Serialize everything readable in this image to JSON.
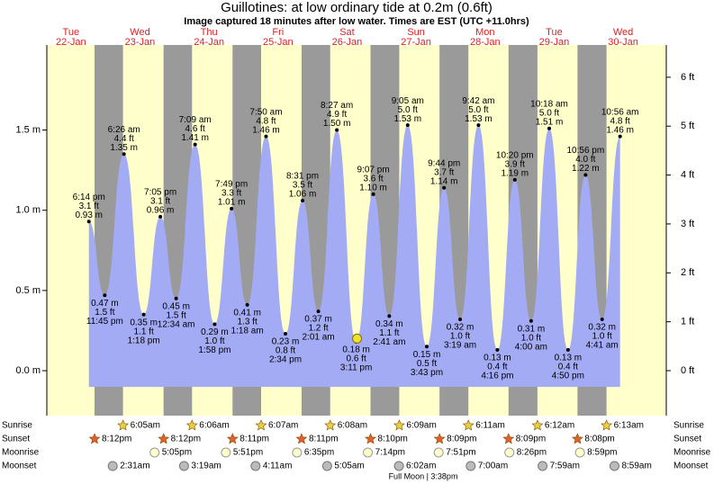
{
  "chart_data": {
    "type": "area",
    "title": "Guillotines: at low  ordinary tide at 0.2m (0.6ft)",
    "subtitle": "Image captured 18 minutes after low water. Times are EST (UTC +11.0hrs)",
    "days": [
      {
        "dow": "Tue",
        "date": "22-Jan"
      },
      {
        "dow": "Wed",
        "date": "23-Jan"
      },
      {
        "dow": "Thu",
        "date": "24-Jan"
      },
      {
        "dow": "Fri",
        "date": "25-Jan"
      },
      {
        "dow": "Sat",
        "date": "26-Jan"
      },
      {
        "dow": "Sun",
        "date": "27-Jan"
      },
      {
        "dow": "Mon",
        "date": "28-Jan"
      },
      {
        "dow": "Tue",
        "date": "29-Jan"
      },
      {
        "dow": "Wed",
        "date": "30-Jan"
      }
    ],
    "x": [
      18.23,
      23.75,
      30.43,
      37.3,
      43.08,
      48.57,
      55.15,
      61.97,
      67.82,
      73.3,
      79.83,
      86.57,
      92.52,
      98.02,
      104.45,
      111.18,
      117.12,
      122.68,
      129.08,
      135.72,
      141.73,
      147.32,
      153.7,
      160.27,
      166.33,
      172.0,
      178.3,
      184.83,
      190.93,
      196.68,
      202.93
    ],
    "values": [
      0.93,
      0.47,
      1.35,
      0.35,
      0.96,
      0.45,
      1.41,
      0.29,
      1.01,
      0.41,
      1.46,
      0.23,
      1.06,
      0.37,
      1.5,
      0.18,
      1.1,
      0.34,
      1.53,
      0.15,
      1.14,
      0.32,
      1.53,
      0.13,
      1.19,
      0.31,
      1.51,
      0.13,
      1.22,
      0.32,
      1.46
    ],
    "value_labels": [
      "0.93 m",
      "0.47 m",
      "1.35 m",
      "0.35 m",
      "0.96 m",
      "0.45 m",
      "1.41 m",
      "0.29 m",
      "1.01 m",
      "0.41 m",
      "1.46 m",
      "0.23 m",
      "1.06 m",
      "0.37 m",
      "1.50 m",
      "0.18 m",
      "1.10 m",
      "0.34 m",
      "1.53 m",
      "0.15 m",
      "1.14 m",
      "0.32 m",
      "1.53 m",
      "0.13 m",
      "1.19 m",
      "0.31 m",
      "1.51 m",
      "0.13 m",
      "1.22 m",
      "0.32 m",
      "1.46 m"
    ],
    "ft_labels": [
      "3.1 ft",
      "1.5 ft",
      "4.4 ft",
      "1.1 ft",
      "3.1 ft",
      "1.5 ft",
      "4.6 ft",
      "1.0 ft",
      "3.3 ft",
      "1.3 ft",
      "4.8 ft",
      "0.8 ft",
      "3.5 ft",
      "1.2 ft",
      "4.9 ft",
      "0.6 ft",
      "3.6 ft",
      "1.1 ft",
      "5.0 ft",
      "0.5 ft",
      "3.7 ft",
      "1.0 ft",
      "5.0 ft",
      "0.4 ft",
      "3.9 ft",
      "1.0 ft",
      "5.0 ft",
      "0.4 ft",
      "4.0 ft",
      "1.0 ft",
      "4.8 ft"
    ],
    "time_labels": [
      "6:14 pm",
      "11:45 pm",
      "6:26 am",
      "1:18 pm",
      "7:05 pm",
      "12:34 am",
      "7:09 am",
      "1:58 pm",
      "7:49 pm",
      "1:18 am",
      "7:50 am",
      "2:34 pm",
      "8:31 pm",
      "2:01 am",
      "8:27 am",
      "3:11 pm",
      "9:07 pm",
      "2:41 am",
      "9:05 am",
      "3:43 pm",
      "9:44 pm",
      "3:19 am",
      "9:42 am",
      "4:16 pm",
      "10:20 pm",
      "4:00 am",
      "10:18 am",
      "4:50 pm",
      "10:56 pm",
      "4:41 am",
      "10:56 am"
    ],
    "now": {
      "x": 111.48,
      "value": 0.2
    },
    "color": "#a3abf4",
    "night_color": "#9a9a9a",
    "day_color": "#ffffcc",
    "xlim": [
      3.6,
      219
    ],
    "ylim": [
      -0.28,
      2.03
    ],
    "yticks": [
      {
        "value": 0.0,
        "label": "0.0 m"
      },
      {
        "value": 0.5,
        "label": "0.5 m"
      },
      {
        "value": 1.0,
        "label": "1.0 m"
      },
      {
        "value": 1.5,
        "label": "1.5 m"
      }
    ],
    "y2lim": [
      -0.92,
      6.66
    ],
    "y2ticks": [
      {
        "value": 0,
        "label": "0 ft"
      },
      {
        "value": 1,
        "label": "1 ft"
      },
      {
        "value": 2,
        "label": "2 ft"
      },
      {
        "value": 3,
        "label": "3 ft"
      },
      {
        "value": 4,
        "label": "4 ft"
      },
      {
        "value": 5,
        "label": "5 ft"
      },
      {
        "value": 6,
        "label": "6 ft"
      }
    ],
    "events": [
      {
        "name": "Sunrise",
        "times": [
          null,
          "6:05am",
          "6:06am",
          "6:07am",
          "6:08am",
          "6:09am",
          "6:11am",
          "6:12am",
          "6:13am"
        ]
      },
      {
        "name": "Sunset",
        "times": [
          "8:12pm",
          "8:12pm",
          "8:11pm",
          "8:11pm",
          "8:10pm",
          "8:09pm",
          "8:09pm",
          "8:08pm",
          null
        ]
      },
      {
        "name": "Moonrise",
        "times": [
          null,
          "5:05pm",
          "5:51pm",
          "6:35pm",
          "7:14pm",
          "7:51pm",
          "8:26pm",
          "8:59pm",
          null
        ]
      },
      {
        "name": "Moonset",
        "times": [
          null,
          "2:31am",
          "3:19am",
          "4:11am",
          "5:05am",
          "6:02am",
          "7:00am",
          "7:59am",
          "8:59am"
        ]
      }
    ],
    "moon_phase": "Full Moon | 3:38pm"
  }
}
